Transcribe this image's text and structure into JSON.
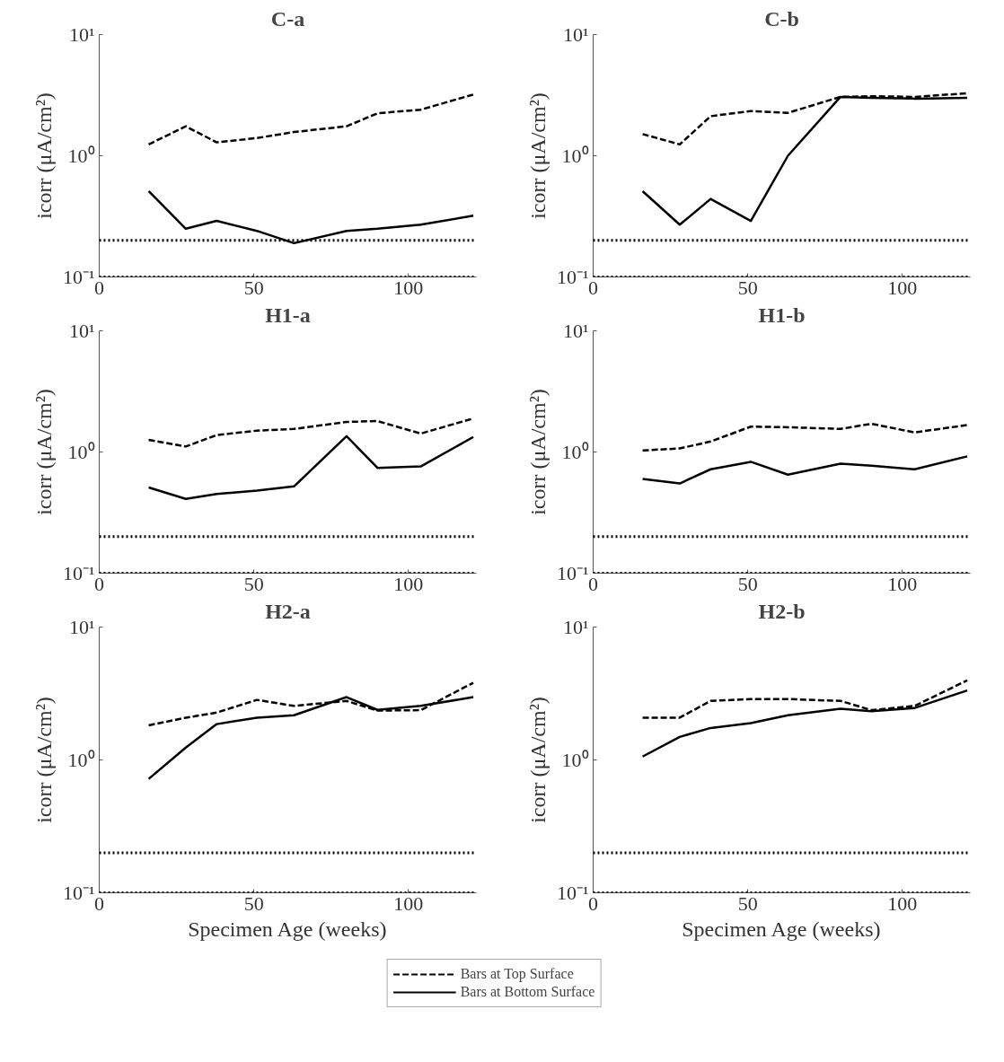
{
  "chart_data": [
    {
      "type": "line",
      "title": "C-a",
      "ylabel": "icorr (μA/cm²)",
      "log": "y",
      "x": [
        16,
        28,
        38,
        51,
        63,
        80,
        90,
        104,
        121
      ],
      "xlim": [
        0,
        122
      ],
      "xticks": [
        0,
        50,
        100
      ],
      "ylim": [
        0.1,
        10
      ],
      "yticks": [
        {
          "value": 0.1,
          "label": "10⁻¹"
        },
        {
          "value": 1,
          "label": "10⁰"
        },
        {
          "value": 10,
          "label": "10¹"
        }
      ],
      "grid": false,
      "series": [
        {
          "color": "#000000",
          "line_style": "dashed",
          "values": [
            1.24,
            1.75,
            1.29,
            1.4,
            1.57,
            1.75,
            2.24,
            2.4,
            3.2
          ]
        },
        {
          "color": "#000000",
          "line_style": "solid",
          "values": [
            0.51,
            0.25,
            0.29,
            0.24,
            0.19,
            0.24,
            0.25,
            0.27,
            0.32
          ]
        }
      ],
      "ref_lines": [
        {
          "axis": "y",
          "value": 0.2,
          "color": "#000000",
          "line_style": "dotted"
        },
        {
          "axis": "y",
          "value": 0.1,
          "color": "#000000",
          "line_style": "dotted"
        }
      ]
    },
    {
      "type": "line",
      "title": "C-b",
      "ylabel": "icorr (μA/cm²)",
      "log": "y",
      "x": [
        16,
        28,
        38,
        51,
        63,
        80,
        90,
        104,
        121
      ],
      "xlim": [
        0,
        122
      ],
      "xticks": [
        0,
        50,
        100
      ],
      "ylim": [
        0.1,
        10
      ],
      "yticks": [
        {
          "value": 0.1,
          "label": "10⁻¹"
        },
        {
          "value": 1,
          "label": "10⁰"
        },
        {
          "value": 10,
          "label": "10¹"
        }
      ],
      "grid": false,
      "series": [
        {
          "color": "#000000",
          "line_style": "dashed",
          "values": [
            1.51,
            1.24,
            2.12,
            2.34,
            2.26,
            3.06,
            3.1,
            3.06,
            3.28
          ]
        },
        {
          "color": "#000000",
          "line_style": "solid",
          "values": [
            0.51,
            0.27,
            0.44,
            0.29,
            1.0,
            3.06,
            3.0,
            2.96,
            3.0
          ]
        }
      ],
      "ref_lines": [
        {
          "axis": "y",
          "value": 0.2,
          "color": "#000000",
          "line_style": "dotted"
        },
        {
          "axis": "y",
          "value": 0.1,
          "color": "#000000",
          "line_style": "dotted"
        }
      ]
    },
    {
      "type": "line",
      "title": "H1-a",
      "ylabel": "icorr (μA/cm²)",
      "log": "y",
      "x": [
        16,
        28,
        38,
        51,
        63,
        80,
        90,
        104,
        121
      ],
      "xlim": [
        0,
        122
      ],
      "xticks": [
        0,
        50,
        100
      ],
      "ylim": [
        0.1,
        10
      ],
      "yticks": [
        {
          "value": 0.1,
          "label": "10⁻¹"
        },
        {
          "value": 1,
          "label": "10⁰"
        },
        {
          "value": 10,
          "label": "10¹"
        }
      ],
      "grid": false,
      "series": [
        {
          "color": "#000000",
          "line_style": "dashed",
          "values": [
            1.26,
            1.11,
            1.38,
            1.5,
            1.55,
            1.77,
            1.8,
            1.42,
            1.89
          ]
        },
        {
          "color": "#000000",
          "line_style": "solid",
          "values": [
            0.51,
            0.41,
            0.45,
            0.48,
            0.52,
            1.35,
            0.74,
            0.76,
            1.33
          ]
        }
      ],
      "ref_lines": [
        {
          "axis": "y",
          "value": 0.2,
          "color": "#000000",
          "line_style": "dotted"
        },
        {
          "axis": "y",
          "value": 0.1,
          "color": "#000000",
          "line_style": "dotted"
        }
      ]
    },
    {
      "type": "line",
      "title": "H1-b",
      "ylabel": "icorr (μA/cm²)",
      "log": "y",
      "x": [
        16,
        28,
        38,
        51,
        63,
        80,
        90,
        104,
        121
      ],
      "xlim": [
        0,
        122
      ],
      "xticks": [
        0,
        50,
        100
      ],
      "ylim": [
        0.1,
        10
      ],
      "yticks": [
        {
          "value": 0.1,
          "label": "10⁻¹"
        },
        {
          "value": 1,
          "label": "10⁰"
        },
        {
          "value": 10,
          "label": "10¹"
        }
      ],
      "grid": false,
      "series": [
        {
          "color": "#000000",
          "line_style": "dashed",
          "values": [
            1.03,
            1.07,
            1.22,
            1.62,
            1.6,
            1.55,
            1.71,
            1.45,
            1.67
          ]
        },
        {
          "color": "#000000",
          "line_style": "solid",
          "values": [
            0.6,
            0.55,
            0.72,
            0.83,
            0.65,
            0.8,
            0.77,
            0.72,
            0.92
          ]
        }
      ],
      "ref_lines": [
        {
          "axis": "y",
          "value": 0.2,
          "color": "#000000",
          "line_style": "dotted"
        },
        {
          "axis": "y",
          "value": 0.1,
          "color": "#000000",
          "line_style": "dotted"
        }
      ]
    },
    {
      "type": "line",
      "title": "H2-a",
      "xlabel": "Specimen Age (weeks)",
      "ylabel": "icorr (μA/cm²)",
      "log": "y",
      "x": [
        16,
        28,
        38,
        51,
        63,
        80,
        90,
        104,
        121
      ],
      "xlim": [
        0,
        122
      ],
      "xticks": [
        0,
        50,
        100
      ],
      "ylim": [
        0.1,
        10
      ],
      "yticks": [
        {
          "value": 0.1,
          "label": "10⁻¹"
        },
        {
          "value": 1,
          "label": "10⁰"
        },
        {
          "value": 10,
          "label": "10¹"
        }
      ],
      "grid": false,
      "series": [
        {
          "color": "#000000",
          "line_style": "dashed",
          "values": [
            1.82,
            2.08,
            2.27,
            2.83,
            2.55,
            2.78,
            2.35,
            2.37,
            3.81
          ]
        },
        {
          "color": "#000000",
          "line_style": "solid",
          "values": [
            0.72,
            1.24,
            1.86,
            2.08,
            2.17,
            2.97,
            2.38,
            2.55,
            2.97
          ]
        }
      ],
      "ref_lines": [
        {
          "axis": "y",
          "value": 0.2,
          "color": "#000000",
          "line_style": "dotted"
        },
        {
          "axis": "y",
          "value": 0.1,
          "color": "#000000",
          "line_style": "dotted"
        }
      ]
    },
    {
      "type": "line",
      "title": "H2-b",
      "xlabel": "Specimen Age (weeks)",
      "ylabel": "icorr (μA/cm²)",
      "log": "y",
      "x": [
        16,
        28,
        38,
        51,
        63,
        80,
        90,
        104,
        121
      ],
      "xlim": [
        0,
        122
      ],
      "xticks": [
        0,
        50,
        100
      ],
      "ylim": [
        0.1,
        10
      ],
      "yticks": [
        {
          "value": 0.1,
          "label": "10⁻¹"
        },
        {
          "value": 1,
          "label": "10⁰"
        },
        {
          "value": 10,
          "label": "10¹"
        }
      ],
      "grid": false,
      "legend": "bottom",
      "series": [
        {
          "name": "Bars at Top Surface",
          "color": "#000000",
          "line_style": "dashed",
          "values": [
            2.08,
            2.08,
            2.78,
            2.87,
            2.87,
            2.78,
            2.37,
            2.55,
            3.97
          ]
        },
        {
          "name": "Bars at Bottom Surface",
          "color": "#000000",
          "line_style": "solid",
          "values": [
            1.06,
            1.49,
            1.74,
            1.89,
            2.17,
            2.43,
            2.33,
            2.46,
            3.33
          ]
        }
      ],
      "ref_lines": [
        {
          "axis": "y",
          "value": 0.2,
          "color": "#000000",
          "line_style": "dotted"
        },
        {
          "axis": "y",
          "value": 0.1,
          "color": "#000000",
          "line_style": "dotted"
        }
      ]
    }
  ]
}
